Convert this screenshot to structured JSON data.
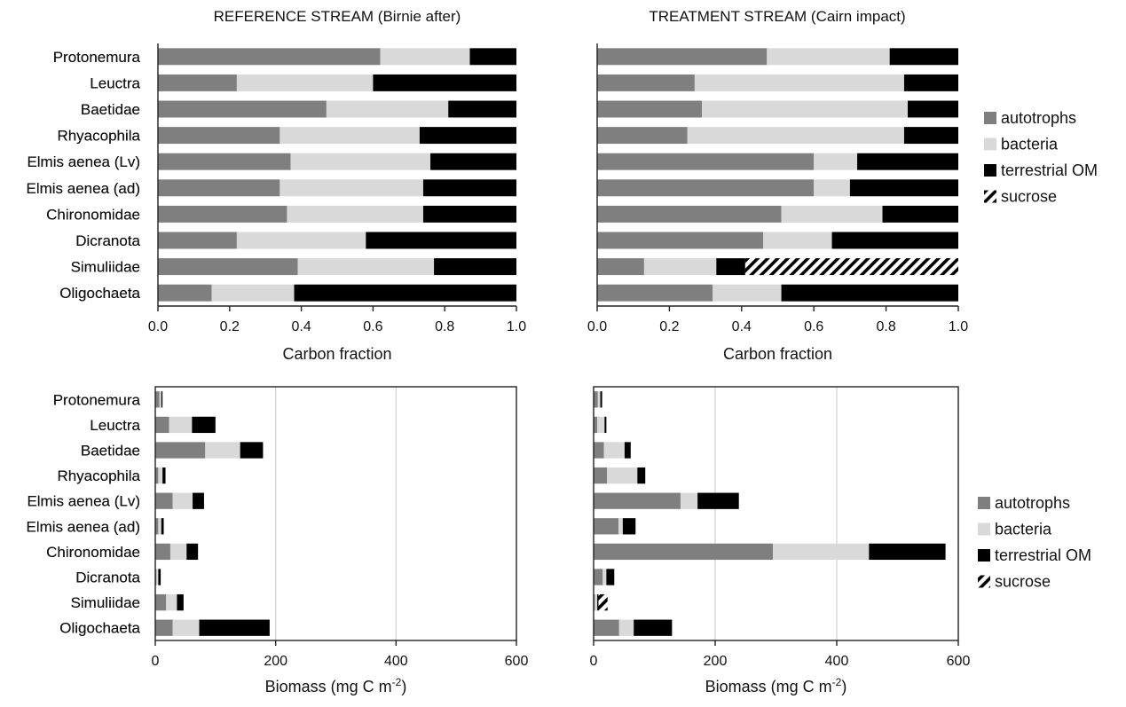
{
  "colors": {
    "autotrophs": "#7f7f7f",
    "bacteria": "#d9d9d9",
    "terrestrial_om": "#000000",
    "sucrose": "hatched black-white",
    "gridline": "#d0d0d0",
    "axis": "#222222"
  },
  "chart_data": [
    {
      "type": "bar",
      "orientation": "horizontal",
      "stacked": true,
      "title": "REFERENCE STREAM (Birnie after)",
      "xlabel": "Carbon fraction",
      "xlim": [
        0,
        1
      ],
      "xticks": [
        "0.0",
        "0.2",
        "0.4",
        "0.6",
        "0.8",
        "1.0"
      ],
      "grid": false,
      "categories": [
        "Protonemura",
        "Leuctra",
        "Baetidae",
        "Rhyacophila",
        "Elmis aenea (Lv)",
        "Elmis aenea (ad)",
        "Chironomidae",
        "Dicranota",
        "Simuliidae",
        "Oligochaeta"
      ],
      "series": [
        {
          "name": "autotrophs",
          "values": [
            0.62,
            0.22,
            0.47,
            0.34,
            0.37,
            0.34,
            0.36,
            0.22,
            0.39,
            0.15
          ]
        },
        {
          "name": "bacteria",
          "values": [
            0.25,
            0.38,
            0.34,
            0.39,
            0.39,
            0.4,
            0.38,
            0.36,
            0.38,
            0.23
          ]
        },
        {
          "name": "terrestrial OM",
          "values": [
            0.13,
            0.4,
            0.19,
            0.27,
            0.24,
            0.26,
            0.26,
            0.42,
            0.23,
            0.62
          ]
        }
      ]
    },
    {
      "type": "bar",
      "orientation": "horizontal",
      "stacked": true,
      "title": "TREATMENT STREAM (Cairn impact)",
      "xlabel": "Carbon fraction",
      "xlim": [
        0,
        1
      ],
      "xticks": [
        "0.0",
        "0.2",
        "0.4",
        "0.6",
        "0.8",
        "1.0"
      ],
      "grid": false,
      "legend": "right",
      "categories": [
        "Protonemura",
        "Leuctra",
        "Baetidae",
        "Rhyacophila",
        "Elmis aenea (Lv)",
        "Elmis aenea (ad)",
        "Chironomidae",
        "Dicranota",
        "Simuliidae",
        "Oligochaeta"
      ],
      "series": [
        {
          "name": "autotrophs",
          "values": [
            0.47,
            0.27,
            0.29,
            0.25,
            0.6,
            0.6,
            0.51,
            0.46,
            0.13,
            0.32
          ]
        },
        {
          "name": "bacteria",
          "values": [
            0.34,
            0.58,
            0.57,
            0.6,
            0.12,
            0.1,
            0.28,
            0.19,
            0.2,
            0.19
          ]
        },
        {
          "name": "terrestrial OM",
          "values": [
            0.19,
            0.15,
            0.14,
            0.15,
            0.28,
            0.3,
            0.21,
            0.35,
            0.08,
            0.49
          ]
        },
        {
          "name": "sucrose",
          "values": [
            0,
            0,
            0,
            0,
            0,
            0,
            0,
            0,
            0.59,
            0
          ]
        }
      ]
    },
    {
      "type": "bar",
      "orientation": "horizontal",
      "stacked": true,
      "xlabel": "Biomass (mg C m",
      "xlabel_sup": "-2",
      "xlabel_end": ")",
      "xlim": [
        0,
        600
      ],
      "xticks": [
        "0",
        "200",
        "400",
        "600"
      ],
      "grid": true,
      "categories": [
        "Protonemura",
        "Leuctra",
        "Baetidae",
        "Rhyacophila",
        "Elmis aenea (Lv)",
        "Elmis aenea (ad)",
        "Chironomidae",
        "Dicranota",
        "Simuliidae",
        "Oligochaeta"
      ],
      "series": [
        {
          "name": "autotrophs",
          "values": [
            7,
            23,
            83,
            5,
            29,
            5,
            25,
            2,
            18,
            29
          ]
        },
        {
          "name": "bacteria",
          "values": [
            3,
            38,
            58,
            7,
            33,
            5,
            27,
            3,
            18,
            44
          ]
        },
        {
          "name": "terrestrial OM",
          "values": [
            2,
            39,
            38,
            5,
            19,
            4,
            19,
            4,
            11,
            117
          ]
        }
      ]
    },
    {
      "type": "bar",
      "orientation": "horizontal",
      "stacked": true,
      "xlabel": "Biomass (mg C m",
      "xlabel_sup": "-2",
      "xlabel_end": ")",
      "xlim": [
        0,
        600
      ],
      "xticks": [
        "0",
        "200",
        "400",
        "600"
      ],
      "grid": true,
      "legend": "right",
      "categories": [
        "Protonemura",
        "Leuctra",
        "Baetidae",
        "Rhyacophila",
        "Elmis aenea (Lv)",
        "Elmis aenea (ad)",
        "Chironomidae",
        "Dicranota",
        "Simuliidae",
        "Oligochaeta"
      ],
      "series": [
        {
          "name": "autotrophs",
          "values": [
            7,
            6,
            17,
            22,
            143,
            41,
            295,
            15,
            2,
            42
          ]
        },
        {
          "name": "bacteria",
          "values": [
            4,
            12,
            34,
            50,
            28,
            7,
            158,
            6,
            4,
            24
          ]
        },
        {
          "name": "terrestrial OM",
          "values": [
            3,
            3,
            10,
            13,
            68,
            21,
            126,
            13,
            2,
            63
          ]
        },
        {
          "name": "sucrose",
          "values": [
            0,
            0,
            0,
            0,
            0,
            0,
            0,
            0,
            15,
            0
          ]
        }
      ]
    }
  ],
  "legends": [
    {
      "items": [
        "autotrophs",
        "bacteria",
        "terrestrial OM",
        "sucrose"
      ]
    },
    {
      "items": [
        "autotrophs",
        "bacteria",
        "terrestrial OM",
        "sucrose"
      ]
    }
  ]
}
